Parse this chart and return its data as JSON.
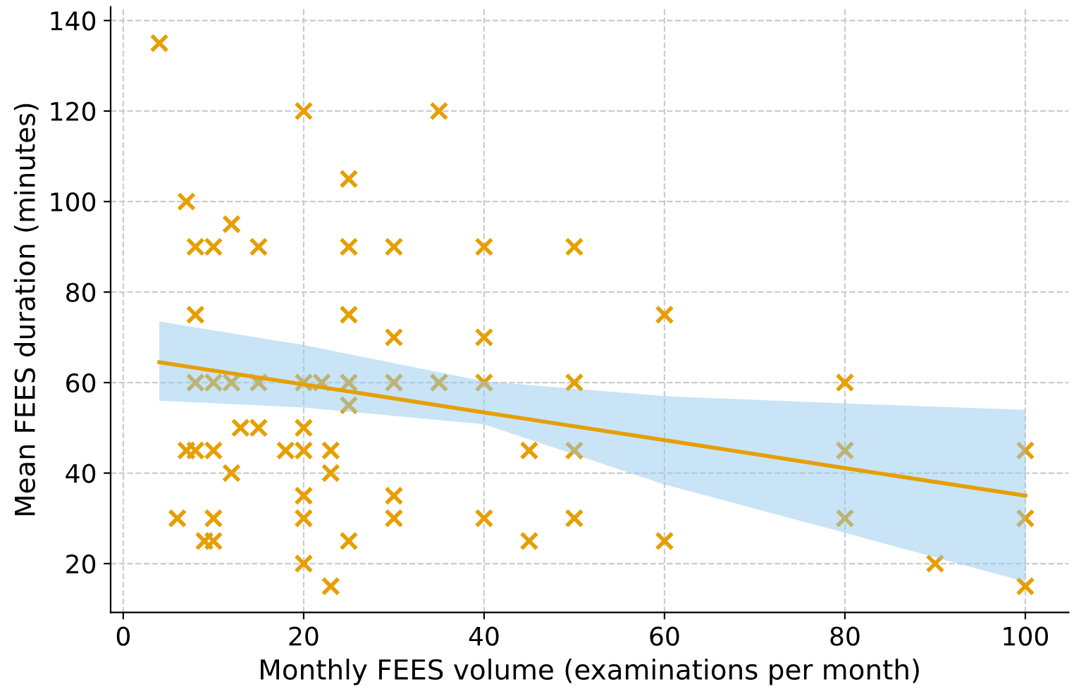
{
  "chart_data": {
    "type": "scatter",
    "xlabel": "Monthly FEES volume (examinations per month)",
    "ylabel": "Mean FEES duration (minutes)",
    "xlim": [
      -1.4,
      104.8
    ],
    "ylim": [
      9.2,
      143
    ],
    "xticks": [
      0,
      20,
      40,
      60,
      80,
      100
    ],
    "yticks": [
      20,
      40,
      60,
      80,
      100,
      120,
      140
    ],
    "grid": true,
    "series": [
      {
        "marker": "cross",
        "color": "#e69f00",
        "x": [
          4,
          20,
          35,
          7,
          25,
          12,
          8,
          10,
          15,
          25,
          30,
          40,
          50,
          8,
          25,
          60,
          30,
          40,
          8,
          10,
          12,
          15,
          20,
          22,
          25,
          30,
          35,
          40,
          50,
          80,
          25,
          13,
          15,
          20,
          7,
          8,
          10,
          18,
          20,
          23,
          45,
          50,
          80,
          100,
          12,
          23,
          20,
          30,
          6,
          10,
          20,
          30,
          40,
          50,
          80,
          100,
          9,
          10,
          25,
          45,
          60,
          20,
          90,
          23,
          100
        ],
        "values": [
          135,
          120,
          120,
          100,
          105,
          95,
          90,
          90,
          90,
          90,
          90,
          90,
          90,
          75,
          75,
          75,
          70,
          70,
          60,
          60,
          60,
          60,
          60,
          60,
          60,
          60,
          60,
          60,
          60,
          60,
          55,
          50,
          50,
          50,
          45,
          45,
          45,
          45,
          45,
          45,
          45,
          45,
          45,
          45,
          40,
          40,
          35,
          35,
          30,
          30,
          30,
          30,
          30,
          30,
          30,
          30,
          25,
          25,
          25,
          25,
          25,
          20,
          20,
          15,
          15
        ]
      },
      {
        "type": "line",
        "color": "#e69f00",
        "x": [
          4,
          20,
          40,
          60,
          80,
          100
        ],
        "values": [
          64.5,
          59.6,
          53.4,
          47.3,
          41.1,
          35
        ],
        "lower": [
          56,
          54.5,
          50.8,
          37.5,
          26.8,
          16
        ],
        "upper": [
          73.5,
          68.3,
          60.3,
          57,
          55.4,
          54
        ]
      }
    ]
  }
}
